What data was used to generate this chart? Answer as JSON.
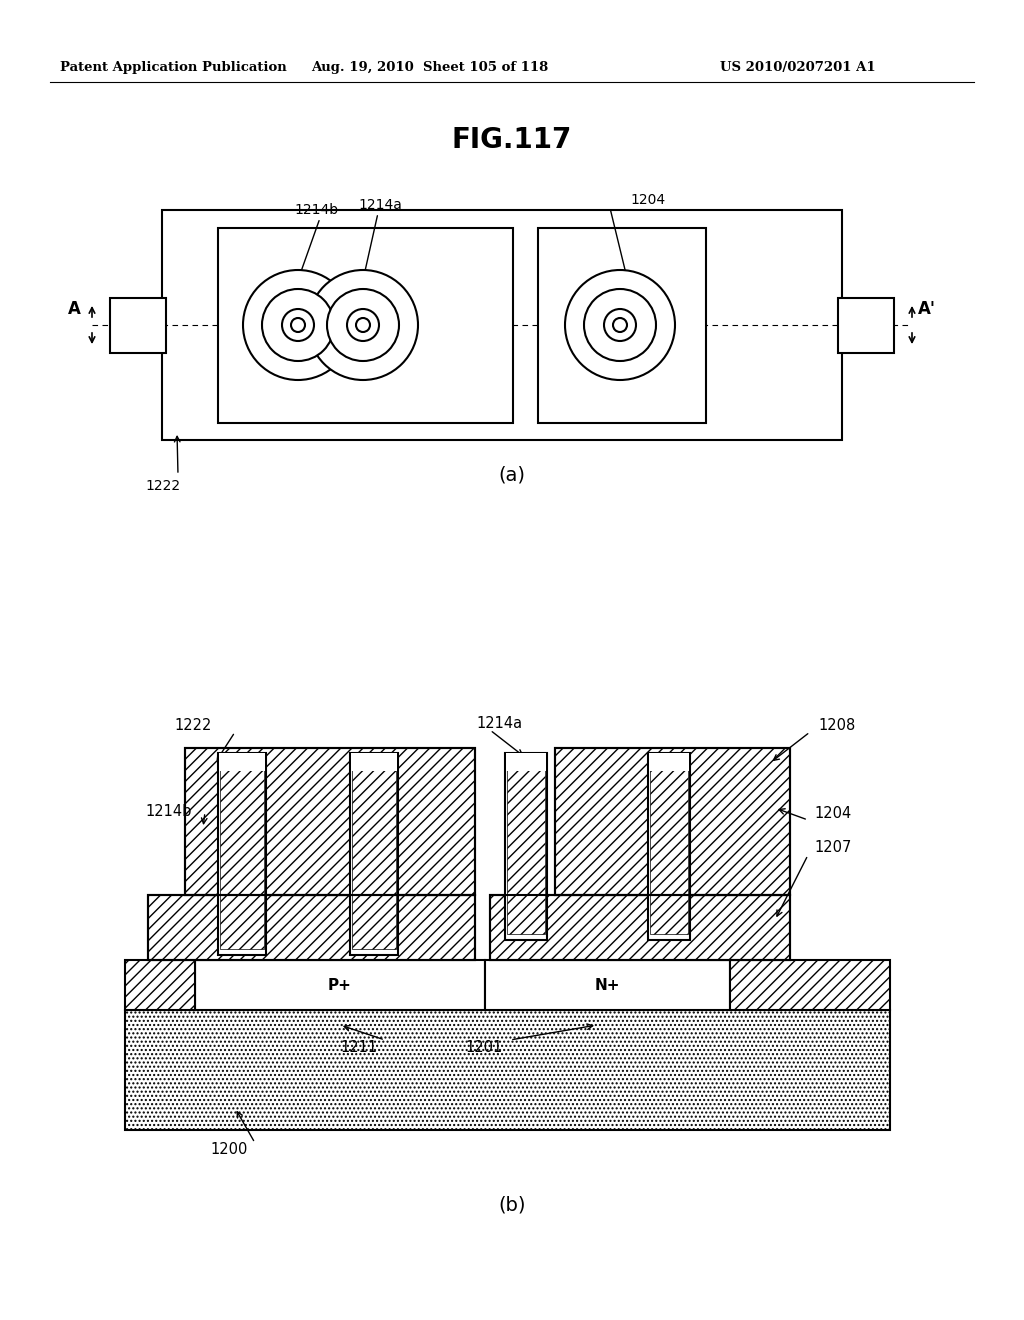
{
  "header_left": "Patent Application Publication",
  "header_mid": "Aug. 19, 2010  Sheet 105 of 118",
  "header_right": "US 2010/0207201 A1",
  "fig_title": "FIG.117",
  "label_a": "(a)",
  "label_b": "(b)",
  "bg_color": "#ffffff",
  "line_color": "#000000"
}
